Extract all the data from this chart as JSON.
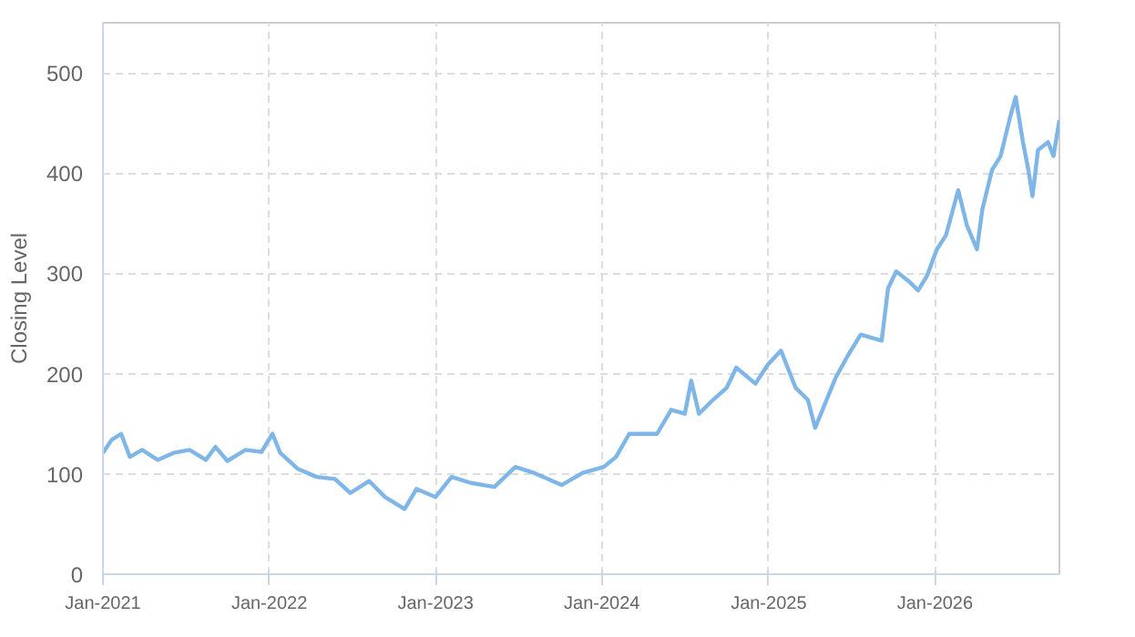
{
  "chart_data": {
    "type": "line",
    "ylabel": "Closing Level",
    "x": [
      "2021-01-01",
      "2021-01-20",
      "2021-02-10",
      "2021-03-01",
      "2021-03-28",
      "2021-05-01",
      "2021-06-05",
      "2021-07-10",
      "2021-08-15",
      "2021-09-05",
      "2021-10-01",
      "2021-11-10",
      "2021-12-15",
      "2022-01-08",
      "2022-01-25",
      "2022-03-05",
      "2022-04-15",
      "2022-05-25",
      "2022-06-28",
      "2022-08-08",
      "2022-09-12",
      "2022-10-25",
      "2022-11-20",
      "2023-01-01",
      "2023-02-05",
      "2023-03-20",
      "2023-05-10",
      "2023-06-25",
      "2023-08-05",
      "2023-10-05",
      "2023-11-20",
      "2024-01-05",
      "2024-02-01",
      "2024-03-01",
      "2024-04-01",
      "2024-05-01",
      "2024-06-01",
      "2024-07-01",
      "2024-07-15",
      "2024-08-01",
      "2024-09-01",
      "2024-10-01",
      "2024-10-22",
      "2024-12-03",
      "2024-12-30",
      "2025-01-28",
      "2025-03-01",
      "2025-03-28",
      "2025-04-13",
      "2025-05-01",
      "2025-05-28",
      "2025-06-25",
      "2025-07-22",
      "2025-09-06",
      "2025-09-20",
      "2025-10-08",
      "2025-11-05",
      "2025-11-25",
      "2025-12-15",
      "2026-01-05",
      "2026-01-25",
      "2026-02-21",
      "2026-03-12",
      "2026-04-03",
      "2026-04-15",
      "2026-05-06",
      "2026-05-25",
      "2026-06-15",
      "2026-06-27",
      "2026-07-13",
      "2026-07-25",
      "2026-08-03",
      "2026-08-15",
      "2026-09-06",
      "2026-09-18",
      "2026-10-01"
    ],
    "series": [
      {
        "color": "#7eb6e8",
        "values": [
          121,
          134,
          140,
          117,
          124,
          114,
          121,
          124,
          114,
          127,
          113,
          124,
          122,
          140,
          121,
          105,
          97,
          95,
          81,
          93,
          77,
          65,
          85,
          77,
          97,
          91,
          87,
          107,
          101,
          89,
          101,
          107,
          117,
          140,
          140,
          140,
          164,
          160,
          193,
          160,
          174,
          186,
          206,
          190,
          209,
          223,
          186,
          174,
          146,
          166,
          196,
          219,
          239,
          233,
          285,
          302,
          292,
          283,
          298,
          324,
          338,
          383,
          348,
          324,
          364,
          403,
          417,
          456,
          476,
          431,
          403,
          377,
          423,
          431,
          417,
          453
        ]
      }
    ],
    "xlim": [
      "2021-01-01",
      "2026-10-01"
    ],
    "xticks": [
      {
        "value": "2021-01-01",
        "label": "Jan-2021"
      },
      {
        "value": "2022-01-01",
        "label": "Jan-2022"
      },
      {
        "value": "2023-01-01",
        "label": "Jan-2023"
      },
      {
        "value": "2024-01-01",
        "label": "Jan-2024"
      },
      {
        "value": "2025-01-01",
        "label": "Jan-2025"
      },
      {
        "value": "2026-01-01",
        "label": "Jan-2026"
      }
    ],
    "ylim": [
      0,
      550
    ],
    "yticks": [
      0,
      100,
      200,
      300,
      400,
      500
    ],
    "grid": true,
    "line_style": "solid"
  }
}
